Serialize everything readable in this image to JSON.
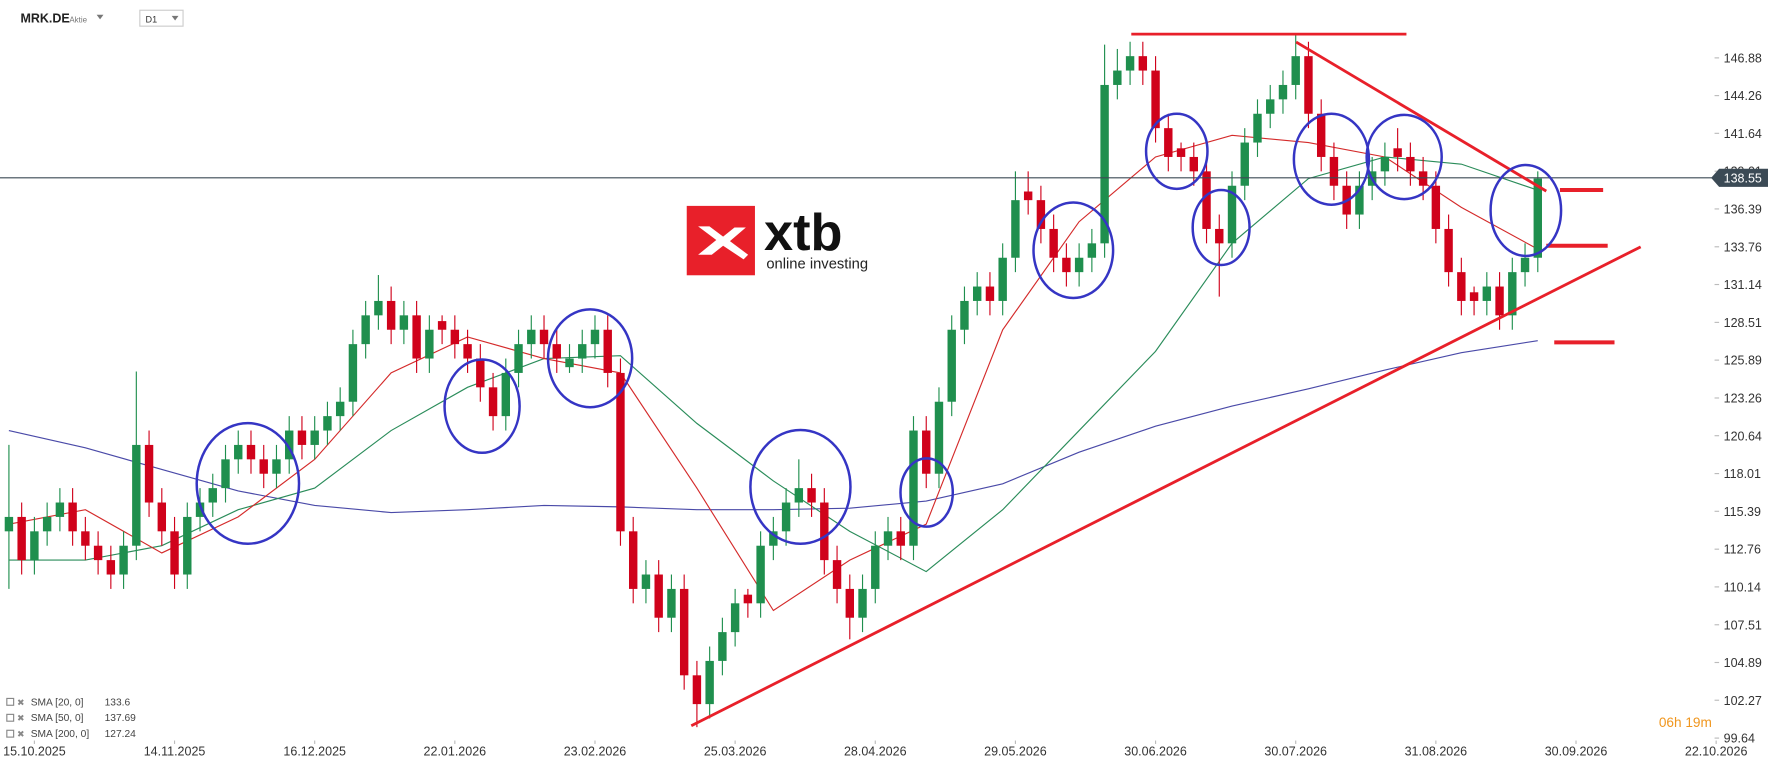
{
  "header": {
    "symbol": "MRK.DE",
    "kind": "Aktie",
    "interval": "D1"
  },
  "logo": {
    "brand": "xtb",
    "tagline": "online investing"
  },
  "timer": "06h 19m",
  "chart_data": {
    "type": "candlestick",
    "up_color": "#1f8f4e",
    "down_color": "#d0021b",
    "xlim": [
      -0.7,
      134.5
    ],
    "xticks": [
      {
        "value": 2,
        "label": "15.10.2025"
      },
      {
        "value": 13,
        "label": "14.11.2025"
      },
      {
        "value": 24,
        "label": "16.12.2025"
      },
      {
        "value": 35,
        "label": "22.01.2026"
      },
      {
        "value": 46,
        "label": "23.02.2026"
      },
      {
        "value": 57,
        "label": "25.03.2026"
      },
      {
        "value": 68,
        "label": "28.04.2026"
      },
      {
        "value": 79,
        "label": "29.05.2026"
      },
      {
        "value": 90,
        "label": "30.06.2026"
      },
      {
        "value": 101,
        "label": "30.07.2026"
      },
      {
        "value": 112,
        "label": "31.08.2026"
      },
      {
        "value": 123,
        "label": "30.09.2026"
      },
      {
        "value": 134,
        "label": "22.10.2026"
      }
    ],
    "ylim": [
      99.55,
      150.9
    ],
    "yticks": [
      99.64,
      102.27,
      104.89,
      107.51,
      110.14,
      112.76,
      115.39,
      118.01,
      120.64,
      123.26,
      125.89,
      128.51,
      131.14,
      133.76,
      136.39,
      139.01,
      141.64,
      144.26,
      146.88
    ],
    "last_price": 138.55,
    "ohlc": [
      [
        114,
        120,
        110,
        115
      ],
      [
        115,
        116,
        111,
        112
      ],
      [
        112,
        115,
        111,
        114
      ],
      [
        114,
        116,
        113,
        115
      ],
      [
        115,
        117,
        114,
        116
      ],
      [
        116,
        117,
        113,
        114
      ],
      [
        114,
        115,
        112,
        113
      ],
      [
        113,
        114,
        111,
        112
      ],
      [
        112,
        113,
        110,
        111
      ],
      [
        111,
        114,
        110,
        113
      ],
      [
        113,
        125.1,
        112,
        120
      ],
      [
        120,
        121,
        115,
        116
      ],
      [
        116,
        117,
        113,
        114
      ],
      [
        114,
        115,
        110,
        111
      ],
      [
        111,
        116,
        110,
        115
      ],
      [
        115,
        117,
        114,
        116
      ],
      [
        116,
        118,
        115,
        117
      ],
      [
        117,
        120,
        116,
        119
      ],
      [
        119,
        121,
        118,
        120
      ],
      [
        120,
        121,
        118,
        119
      ],
      [
        119,
        120,
        117,
        118
      ],
      [
        118,
        120,
        117,
        119
      ],
      [
        119,
        122,
        118,
        121
      ],
      [
        121,
        122,
        119,
        120
      ],
      [
        120,
        122,
        119,
        121
      ],
      [
        121,
        123,
        120,
        122
      ],
      [
        122,
        124,
        121,
        123
      ],
      [
        123,
        128,
        122,
        127
      ],
      [
        127,
        130,
        126,
        129
      ],
      [
        129,
        131.8,
        128,
        130
      ],
      [
        130,
        131,
        127,
        128
      ],
      [
        128,
        130,
        127,
        129
      ],
      [
        129,
        130,
        125,
        126
      ],
      [
        126,
        129,
        125,
        128
      ],
      [
        128.6,
        129,
        127,
        128
      ],
      [
        128,
        129,
        126,
        127
      ],
      [
        127,
        128,
        125,
        126
      ],
      [
        126,
        127,
        123,
        124
      ],
      [
        124,
        125,
        121,
        122
      ],
      [
        122,
        126,
        121,
        125
      ],
      [
        125,
        128,
        124,
        127
      ],
      [
        127,
        129,
        126,
        128
      ],
      [
        128,
        129,
        126,
        127
      ],
      [
        127,
        128,
        125,
        126
      ],
      [
        125.4,
        127,
        125,
        126
      ],
      [
        126,
        128,
        125,
        127
      ],
      [
        127,
        129,
        126,
        128
      ],
      [
        128,
        129,
        124,
        125
      ],
      [
        125,
        126,
        113,
        114
      ],
      [
        114,
        115,
        109,
        110
      ],
      [
        110,
        112,
        109,
        111
      ],
      [
        111,
        112,
        107,
        108
      ],
      [
        108,
        111,
        107,
        110
      ],
      [
        110,
        111,
        103,
        104
      ],
      [
        104,
        105,
        100.4,
        102
      ],
      [
        102,
        106,
        101,
        105
      ],
      [
        105,
        108,
        104,
        107
      ],
      [
        107,
        110,
        106,
        109
      ],
      [
        109.6,
        110,
        108,
        109
      ],
      [
        109,
        114,
        108,
        113
      ],
      [
        113,
        115,
        112,
        114
      ],
      [
        114,
        117,
        113,
        116
      ],
      [
        116,
        119,
        115,
        117
      ],
      [
        117,
        118,
        115,
        116
      ],
      [
        116,
        117,
        111,
        112
      ],
      [
        112,
        113,
        109,
        110
      ],
      [
        110,
        111,
        106.5,
        108
      ],
      [
        108,
        111,
        107,
        110
      ],
      [
        110,
        114,
        109,
        113
      ],
      [
        113,
        115,
        112,
        114
      ],
      [
        114,
        115,
        112,
        113
      ],
      [
        113,
        122,
        112,
        121
      ],
      [
        121,
        122,
        117,
        118
      ],
      [
        118,
        124,
        117,
        123
      ],
      [
        123,
        129,
        122,
        128
      ],
      [
        128,
        131,
        127,
        130
      ],
      [
        130,
        132,
        129,
        131
      ],
      [
        131,
        132,
        129,
        130
      ],
      [
        130,
        134,
        129,
        133
      ],
      [
        133,
        139,
        132,
        137
      ],
      [
        137.6,
        139,
        136,
        137
      ],
      [
        137,
        138,
        134,
        135
      ],
      [
        135,
        136,
        132,
        133
      ],
      [
        133,
        134,
        131,
        132
      ],
      [
        132,
        134,
        131,
        133
      ],
      [
        133,
        135,
        132,
        134
      ],
      [
        134,
        147.8,
        133,
        145
      ],
      [
        145,
        147.5,
        144,
        146
      ],
      [
        146,
        148,
        145,
        147
      ],
      [
        147,
        148,
        145,
        146
      ],
      [
        146,
        147,
        141,
        142
      ],
      [
        142,
        143,
        139,
        140
      ],
      [
        140.6,
        141,
        139,
        140
      ],
      [
        140,
        141,
        138,
        139
      ],
      [
        139,
        140,
        134,
        135
      ],
      [
        135,
        136,
        130.3,
        134
      ],
      [
        134,
        139,
        133,
        138
      ],
      [
        138,
        142,
        137,
        141
      ],
      [
        141,
        144,
        140,
        143
      ],
      [
        143,
        145,
        142,
        144
      ],
      [
        144,
        146,
        143,
        145
      ],
      [
        145,
        148.6,
        144,
        147
      ],
      [
        147,
        148,
        142,
        143
      ],
      [
        143,
        144,
        139,
        140
      ],
      [
        140,
        141,
        137,
        138
      ],
      [
        138,
        139,
        135,
        136
      ],
      [
        136,
        139,
        135,
        138
      ],
      [
        138,
        140,
        137,
        139
      ],
      [
        139,
        141,
        138,
        140
      ],
      [
        140.6,
        142,
        139,
        140
      ],
      [
        140,
        141,
        138,
        139
      ],
      [
        139,
        140,
        137,
        138
      ],
      [
        138,
        139,
        134,
        135
      ],
      [
        135,
        136,
        131,
        132
      ],
      [
        132,
        133,
        129,
        130
      ],
      [
        130.6,
        131,
        129,
        130
      ],
      [
        130,
        132,
        129,
        131
      ],
      [
        131,
        132,
        128,
        129
      ],
      [
        129,
        133,
        128,
        132
      ],
      [
        132,
        134,
        131,
        133
      ],
      [
        133,
        139,
        132,
        138.5
      ]
    ],
    "indicators": [
      {
        "name": "SMA [200, 0]",
        "value": 127.24,
        "color": "#4a4aa8",
        "x": [
          0,
          6,
          12,
          18,
          24,
          30,
          36,
          42,
          48,
          54,
          60,
          66,
          72,
          78,
          84,
          90,
          96,
          102,
          108,
          114,
          120
        ],
        "values": [
          121.0,
          119.8,
          118.3,
          116.8,
          115.8,
          115.3,
          115.5,
          115.8,
          115.7,
          115.5,
          115.5,
          115.6,
          116.1,
          117.3,
          119.5,
          121.3,
          122.7,
          123.9,
          125.2,
          126.4,
          127.24
        ]
      },
      {
        "name": "SMA [50, 0]",
        "value": 137.69,
        "color": "#2a8c5a",
        "x": [
          0,
          6,
          12,
          18,
          24,
          30,
          36,
          42,
          48,
          54,
          60,
          66,
          72,
          78,
          84,
          90,
          96,
          102,
          108,
          114,
          120
        ],
        "values": [
          112.0,
          112.0,
          113.0,
          115.5,
          117.0,
          121.0,
          124.0,
          126.0,
          126.2,
          121.5,
          117.5,
          114.0,
          111.2,
          115.5,
          121.0,
          126.5,
          134.0,
          138.5,
          140.0,
          139.5,
          137.69
        ]
      },
      {
        "name": "SMA [20, 0]",
        "value": 133.6,
        "color": "#d42a2a",
        "x": [
          0,
          6,
          12,
          18,
          24,
          30,
          36,
          42,
          48,
          54,
          60,
          66,
          72,
          78,
          84,
          90,
          96,
          102,
          108,
          114,
          120
        ],
        "values": [
          114.5,
          115.5,
          112.5,
          115.0,
          119.0,
          125.0,
          127.5,
          126.0,
          125.0,
          117.0,
          108.5,
          112.0,
          114.5,
          128.0,
          135.5,
          140.0,
          141.5,
          141.0,
          140.0,
          136.5,
          133.6
        ]
      }
    ]
  }
}
